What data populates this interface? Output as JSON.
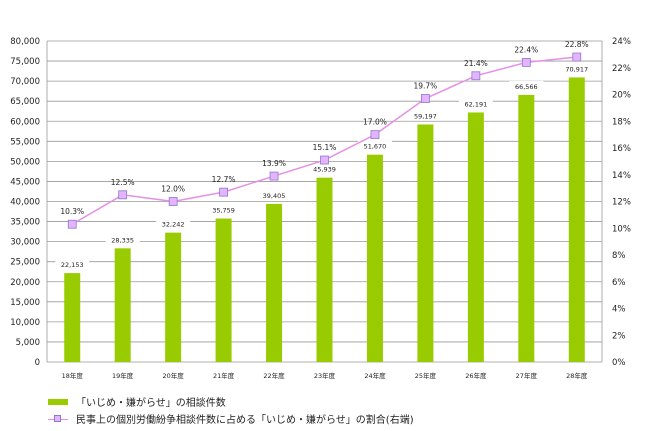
{
  "chart_data": {
    "type": "bar+line",
    "categories": [
      "18年度",
      "19年度",
      "20年度",
      "21年度",
      "22年度",
      "23年度",
      "24年度",
      "25年度",
      "26年度",
      "27年度",
      "28年度"
    ],
    "series": [
      {
        "name": "「いじめ・嫌がらせ」の相談件数",
        "type": "bar",
        "axis": "left",
        "color": "#99cc00",
        "values": [
          22153,
          28335,
          32242,
          35759,
          39405,
          45939,
          51670,
          59197,
          62191,
          66566,
          70917
        ],
        "labels": [
          "22,153",
          "28,335",
          "32,242",
          "35,759",
          "39,405",
          "45,939",
          "51,670",
          "59,197",
          "62,191",
          "66,566",
          "70,917"
        ]
      },
      {
        "name": "民事上の個別労働紛争相談件数に占める「いじめ・嫌がらせ」の割合(右端)",
        "type": "line",
        "axis": "right",
        "color": "#e58fe5",
        "marker_color": "#e6b3ff",
        "values": [
          10.3,
          12.5,
          12.0,
          12.7,
          13.9,
          15.1,
          17.0,
          19.7,
          21.4,
          22.4,
          22.8
        ],
        "labels": [
          "10.3%",
          "12.5%",
          "12.0%",
          "12.7%",
          "13.9%",
          "15.1%",
          "17.0%",
          "19.7%",
          "21.4%",
          "22.4%",
          "22.8%"
        ]
      }
    ],
    "y_left": {
      "lim": [
        0,
        80000
      ],
      "ticks": [
        "0",
        "5,000",
        "10,000",
        "15,000",
        "20,000",
        "25,000",
        "30,000",
        "35,000",
        "40,000",
        "45,000",
        "50,000",
        "55,000",
        "60,000",
        "65,000",
        "70,000",
        "75,000",
        "80,000"
      ]
    },
    "y_right": {
      "lim": [
        0,
        24
      ],
      "ticks": [
        "0%",
        "2%",
        "4%",
        "6%",
        "8%",
        "10%",
        "12%",
        "14%",
        "16%",
        "18%",
        "20%",
        "22%",
        "24%"
      ]
    },
    "grid": true,
    "legend": "bottom-left"
  }
}
